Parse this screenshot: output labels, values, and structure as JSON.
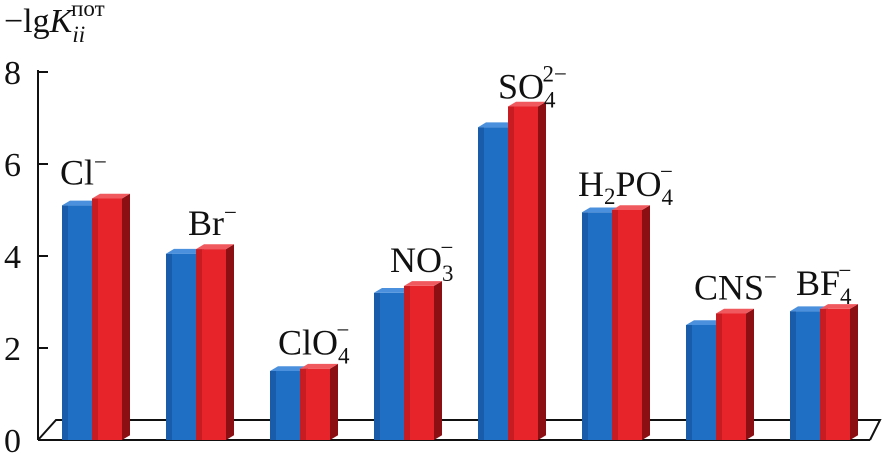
{
  "chart_data": {
    "type": "bar",
    "ylabel": {
      "prefix": "−lg",
      "var": "K",
      "sub": "ii",
      "sup": "пот"
    },
    "ylim": [
      0,
      8
    ],
    "yticks": [
      "0",
      "2",
      "4",
      "6",
      "8"
    ],
    "categories": [
      {
        "base": "Cl",
        "sub": "",
        "sup": "−"
      },
      {
        "base": "Br",
        "sub": "",
        "sup": "−"
      },
      {
        "base": "ClO",
        "sub": "4",
        "sup": "−"
      },
      {
        "base": "NO",
        "sub": "3",
        "sup": "−"
      },
      {
        "base": "SO",
        "sub": "4",
        "sup": "2−"
      },
      {
        "base": "H2PO",
        "sub": "4",
        "sup": "−"
      },
      {
        "base": "CNS",
        "sub": "",
        "sup": "−"
      },
      {
        "base": "BF",
        "sub": "4",
        "sup": "−"
      }
    ],
    "series": [
      {
        "values": [
          5.1,
          4.05,
          1.5,
          3.2,
          6.8,
          4.95,
          2.5,
          2.8
        ]
      },
      {
        "values": [
          5.25,
          4.15,
          1.55,
          3.35,
          7.25,
          5.0,
          2.75,
          2.85
        ]
      }
    ],
    "colors": {
      "blue_front": "#1f6fc4",
      "blue_side": "#0d3d7a",
      "blue_top": "#4a90dd",
      "red_front": "#e8242b",
      "red_side": "#8c0f14",
      "red_top": "#f05a5f"
    },
    "grid": false
  }
}
